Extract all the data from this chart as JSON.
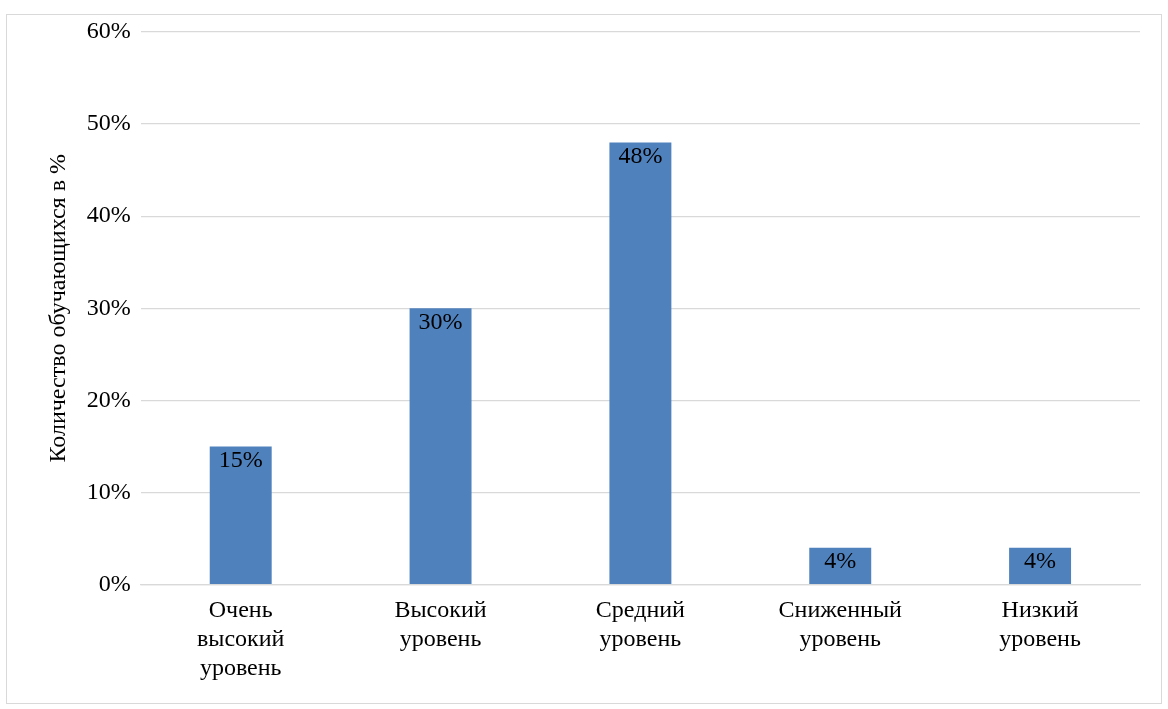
{
  "chart_data": {
    "type": "bar",
    "ylabel": "Количество обучающихся в %",
    "categories": [
      "Очень высокий уровень",
      "Высокий уровень",
      "Средний уровень",
      "Сниженный уровень",
      "Низкий уровень"
    ],
    "values": [
      15,
      30,
      48,
      4,
      4
    ],
    "color": "#4f81bd",
    "ylim": [
      0,
      60
    ],
    "yticks": [
      {
        "value": 0,
        "label": "0%"
      },
      {
        "value": 10,
        "label": "10%"
      },
      {
        "value": 20,
        "label": "20%"
      },
      {
        "value": 30,
        "label": "30%"
      },
      {
        "value": 40,
        "label": "40%"
      },
      {
        "value": 50,
        "label": "50%"
      },
      {
        "value": 60,
        "label": "60%"
      }
    ],
    "value_labels": [
      "15%",
      "30%",
      "48%",
      "4%",
      "4%"
    ],
    "grid": "y",
    "legend": false
  }
}
